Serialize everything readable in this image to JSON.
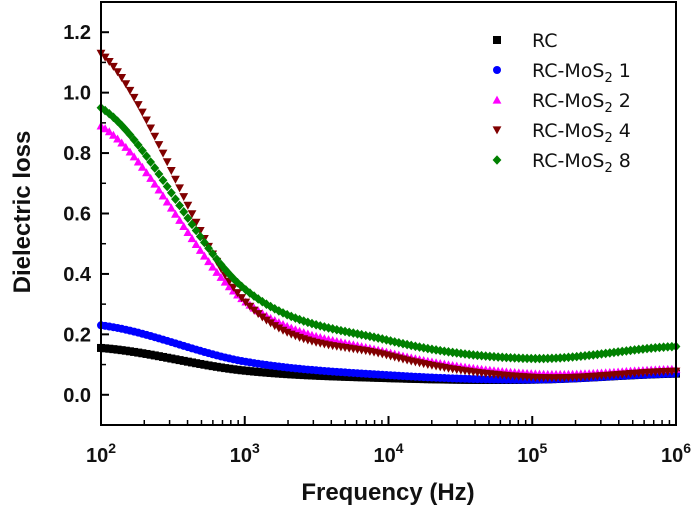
{
  "chart_data": {
    "type": "scatter",
    "title": "",
    "xlabel": "Frequency (Hz)",
    "ylabel": "Dielectric loss",
    "xscale": "log",
    "xlim": [
      100,
      1000000
    ],
    "ylim": [
      -0.1,
      1.3
    ],
    "x_ticks": [
      {
        "value": 100,
        "base": "10",
        "exp": "2"
      },
      {
        "value": 1000,
        "base": "10",
        "exp": "3"
      },
      {
        "value": 10000,
        "base": "10",
        "exp": "4"
      },
      {
        "value": 100000,
        "base": "10",
        "exp": "5"
      },
      {
        "value": 1000000,
        "base": "10",
        "exp": "6"
      }
    ],
    "y_ticks": [
      "0.0",
      "0.2",
      "0.4",
      "0.6",
      "0.8",
      "1.0",
      "1.2"
    ],
    "grid": false,
    "legend_position": "top-right",
    "x": [
      100,
      1000,
      10000,
      100000,
      1000000
    ],
    "series": [
      {
        "name": "RC",
        "base": "RC",
        "sub": "",
        "suffix": "",
        "marker": "square",
        "color": "#000000",
        "values": [
          0.155,
          0.08,
          0.055,
          0.05,
          0.07
        ]
      },
      {
        "name": "RC-MoS2 1",
        "base": "RC-MoS",
        "sub": "2",
        "suffix": " 1",
        "marker": "circle",
        "color": "#0000ff",
        "values": [
          0.23,
          0.11,
          0.065,
          0.05,
          0.07
        ]
      },
      {
        "name": "RC-MoS2 2",
        "base": "RC-MoS",
        "sub": "2",
        "suffix": " 2",
        "marker": "triangle-up",
        "color": "#ff00ff",
        "values": [
          0.89,
          0.31,
          0.14,
          0.07,
          0.085
        ]
      },
      {
        "name": "RC-MoS2 4",
        "base": "RC-MoS",
        "sub": "2",
        "suffix": " 4",
        "marker": "triangle-down",
        "color": "#800000",
        "values": [
          1.13,
          0.31,
          0.13,
          0.058,
          0.078
        ]
      },
      {
        "name": "RC-MoS2 8",
        "base": "RC-MoS",
        "sub": "2",
        "suffix": " 8",
        "marker": "diamond",
        "color": "#008000",
        "values": [
          0.95,
          0.35,
          0.18,
          0.12,
          0.16
        ]
      }
    ]
  }
}
